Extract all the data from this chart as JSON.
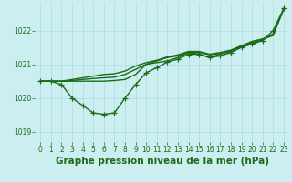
{
  "title": "Graphe pression niveau de la mer (hPa)",
  "bg_color": "#cceef0",
  "grid_color": "#aadddd",
  "line_color": "#1a6b1a",
  "marker_color": "#1a6b1a",
  "xlim": [
    -0.5,
    23.5
  ],
  "ylim": [
    1018.7,
    1022.85
  ],
  "yticks": [
    1019,
    1020,
    1021,
    1022
  ],
  "xticks": [
    0,
    1,
    2,
    3,
    4,
    5,
    6,
    7,
    8,
    9,
    10,
    11,
    12,
    13,
    14,
    15,
    16,
    17,
    18,
    19,
    20,
    21,
    22,
    23
  ],
  "series_main": [
    1020.5,
    1020.5,
    1020.4,
    1020.0,
    1019.78,
    1019.56,
    1019.52,
    1019.56,
    1020.0,
    1020.4,
    1020.75,
    1020.9,
    1021.07,
    1021.15,
    1021.3,
    1021.3,
    1021.2,
    1021.25,
    1021.35,
    1021.5,
    1021.6,
    1021.7,
    1022.0,
    1022.65
  ],
  "series_others": [
    [
      1020.5,
      1020.5,
      1020.5,
      1020.5,
      1020.5,
      1020.5,
      1020.5,
      1020.52,
      1020.55,
      1020.7,
      1021.0,
      1021.05,
      1021.1,
      1021.2,
      1021.35,
      1021.3,
      1021.2,
      1021.3,
      1021.4,
      1021.55,
      1021.62,
      1021.75,
      1021.85,
      1022.65
    ],
    [
      1020.5,
      1020.5,
      1020.5,
      1020.52,
      1020.55,
      1020.58,
      1020.6,
      1020.62,
      1020.7,
      1020.85,
      1021.0,
      1021.1,
      1021.2,
      1021.25,
      1021.35,
      1021.35,
      1021.28,
      1021.32,
      1021.38,
      1021.52,
      1021.65,
      1021.72,
      1021.88,
      1022.65
    ],
    [
      1020.5,
      1020.5,
      1020.5,
      1020.55,
      1020.6,
      1020.65,
      1020.7,
      1020.72,
      1020.8,
      1020.95,
      1021.05,
      1021.12,
      1021.22,
      1021.28,
      1021.38,
      1021.38,
      1021.3,
      1021.35,
      1021.42,
      1021.55,
      1021.68,
      1021.75,
      1021.9,
      1022.65
    ]
  ],
  "marker_size": 4,
  "linewidth": 1.0,
  "title_fontsize": 7.5,
  "tick_fontsize": 5.5
}
